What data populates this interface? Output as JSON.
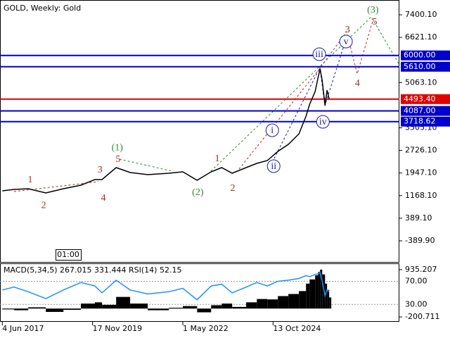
{
  "chart_data": [
    {
      "type": "line",
      "title": "GOLD, Weekly:  Gold",
      "x": [
        "2017-06-04",
        "2017-09-29",
        "2018-02-16",
        "2018-08-10",
        "2019-02-01",
        "2019-07-24",
        "2019-12-10",
        "2020-02-19",
        "2020-07-08",
        "2020-11-24",
        "2021-05-18",
        "2021-12-14",
        "2022-05-01",
        "2022-09-20",
        "2023-02-06",
        "2023-05-22",
        "2023-09-03",
        "2024-01-20",
        "2024-05-05",
        "2024-08-17",
        "2024-11-30",
        "2025-03-14",
        "2025-06-27",
        "2025-09-05",
        "2025-10-11",
        "2025-12-05",
        "2026-01-03",
        "2026-01-23",
        "2026-02-13",
        "2026-03-13",
        "2026-04-02",
        "2026-04-23"
      ],
      "series": [
        {
          "color": "#000000",
          "values": [
            1333,
            1381,
            1405,
            1260,
            1405,
            1527,
            1721,
            1721,
            2134,
            1964,
            1891,
            1940,
            1988,
            1697,
            1988,
            2134,
            1940,
            2134,
            2279,
            2376,
            2692,
            2935,
            3298,
            3905,
            4318,
            4755,
            5240,
            5531,
            5119,
            4269,
            4803,
            4493.4
          ]
        }
      ],
      "xlim": [
        "2017-05-12",
        "2028-03-20"
      ],
      "xticks": [
        {
          "value": "2017-06-04",
          "label": "4 Jun 2017"
        },
        {
          "value": "2019-11-17",
          "label": "17 Nov 2019"
        },
        {
          "value": "2022-05-01",
          "label": "1 May 2022"
        },
        {
          "value": "2024-10-13",
          "label": "13 Oct 2024"
        }
      ],
      "ylim": [
        -1118,
        7910
      ],
      "yticks": [
        {
          "value": 7400.1,
          "label": "7400.10"
        },
        {
          "value": 6621.1,
          "label": "6621.10"
        },
        {
          "value": 5063.1,
          "label": "5063.10"
        },
        {
          "value": 3505.1,
          "label": "3505.10"
        },
        {
          "value": 2726.1,
          "label": "2726.10"
        },
        {
          "value": 1947.1,
          "label": "1947.10"
        },
        {
          "value": 1168.1,
          "label": "1168.10"
        },
        {
          "value": 389.1,
          "label": "389.10"
        },
        {
          "value": -389.9,
          "label": "-389.90"
        }
      ],
      "levels": [
        {
          "value": 6000,
          "label": "6000.00",
          "color": "#0000cc"
        },
        {
          "value": 5610,
          "label": "5610.00",
          "color": "#0000cc"
        },
        {
          "value": 4493.4,
          "label": "4493.40",
          "color": "#e00000"
        },
        {
          "value": 4087,
          "label": "4087.00",
          "color": "#0000cc"
        },
        {
          "value": 3718.62,
          "label": "3718.62",
          "color": "#0000cc"
        }
      ],
      "time_marker": "01:00",
      "annotations": [
        {
          "text": "1",
          "x": "2018-03-08",
          "y": 1721,
          "color": "#a52a2a"
        },
        {
          "text": "2",
          "x": "2018-07-20",
          "y": 847,
          "color": "#a52a2a"
        },
        {
          "text": "3",
          "x": "2020-01-30",
          "y": 2061,
          "color": "#a52a2a"
        },
        {
          "text": "4",
          "x": "2020-03-03",
          "y": 1090,
          "color": "#a52a2a"
        },
        {
          "text": "5",
          "x": "2020-07-27",
          "y": 2425,
          "color": "#a52a2a"
        },
        {
          "text": "(1)",
          "x": "2020-07-19",
          "y": 2837,
          "color": "#2e8b2e"
        },
        {
          "text": "(2)",
          "x": "2022-09-27",
          "y": 1284,
          "color": "#2e8b2e"
        },
        {
          "text": "1",
          "x": "2023-04-08",
          "y": 2449,
          "color": "#a52a2a"
        },
        {
          "text": "2",
          "x": "2023-09-09",
          "y": 1430,
          "color": "#a52a2a"
        },
        {
          "text": "i",
          "x": "2024-10-05",
          "y": 3420,
          "color": "#1a1aa8",
          "circled": true
        },
        {
          "text": "ii",
          "x": "2024-10-19",
          "y": 2182,
          "color": "#1a1aa8",
          "circled": true
        },
        {
          "text": "iii",
          "x": "2026-01-15",
          "y": 6041,
          "color": "#1a1aa8",
          "circled": true
        },
        {
          "text": "iv",
          "x": "2026-02-20",
          "y": 3711,
          "color": "#1a1aa8",
          "circled": true
        },
        {
          "text": "v",
          "x": "2026-10-07",
          "y": 6478,
          "color": "#1a1aa8",
          "circled": true
        },
        {
          "text": "3",
          "x": "2026-10-22",
          "y": 6891,
          "color": "#a52a2a"
        },
        {
          "text": "4",
          "x": "2027-01-29",
          "y": 5046,
          "color": "#a52a2a"
        },
        {
          "text": "5",
          "x": "2027-07-20",
          "y": 7157,
          "color": "#a52a2a"
        },
        {
          "text": "(3)",
          "x": "2027-07-01",
          "y": 7570,
          "color": "#2e8b2e"
        }
      ]
    },
    {
      "type": "macd",
      "title": "MACD(5,34,5) 267.015 331.444 RSI(14) 52.15",
      "x": [
        "2017-06-04",
        "2017-09-29",
        "2018-02-16",
        "2018-08-10",
        "2019-02-01",
        "2019-07-24",
        "2019-12-10",
        "2020-02-19",
        "2020-07-08",
        "2020-11-24",
        "2021-05-18",
        "2021-12-14",
        "2022-05-01",
        "2022-09-20",
        "2023-02-06",
        "2023-05-22",
        "2023-09-03",
        "2024-01-20",
        "2024-05-05",
        "2024-08-17",
        "2024-11-30",
        "2025-03-14",
        "2025-06-27",
        "2025-09-05",
        "2025-10-11",
        "2025-12-05",
        "2026-01-03",
        "2026-01-23",
        "2026-02-13",
        "2026-03-13",
        "2026-04-02",
        "2026-04-23"
      ],
      "series": [
        {
          "color": "#000000",
          "values": [
            -20,
            -40,
            30,
            -80,
            -30,
            120,
            150,
            90,
            280,
            120,
            -40,
            20,
            60,
            -90,
            80,
            120,
            40,
            150,
            230,
            220,
            300,
            350,
            420,
            600,
            700,
            800,
            880,
            935.207,
            820,
            600,
            450,
            267.015
          ]
        },
        {
          "color": "#1e90ff",
          "axis": "y2",
          "values": [
            55,
            60,
            52,
            40,
            55,
            68,
            62,
            50,
            72,
            55,
            48,
            52,
            58,
            38,
            62,
            65,
            50,
            60,
            68,
            62,
            70,
            72,
            75,
            80,
            78,
            82,
            83,
            85,
            70,
            45,
            55,
            52.15
          ]
        }
      ],
      "ylim": [
        -301,
        1069
      ],
      "yticks": [
        {
          "value": 935.207,
          "label": "935.207"
        },
        {
          "value": -200.711,
          "label": "-200.711"
        }
      ],
      "y2lim": [
        1,
        100
      ],
      "y2ticks": [
        {
          "value": 70,
          "label": "70.00"
        },
        {
          "value": 30,
          "label": "30.00"
        }
      ]
    }
  ]
}
